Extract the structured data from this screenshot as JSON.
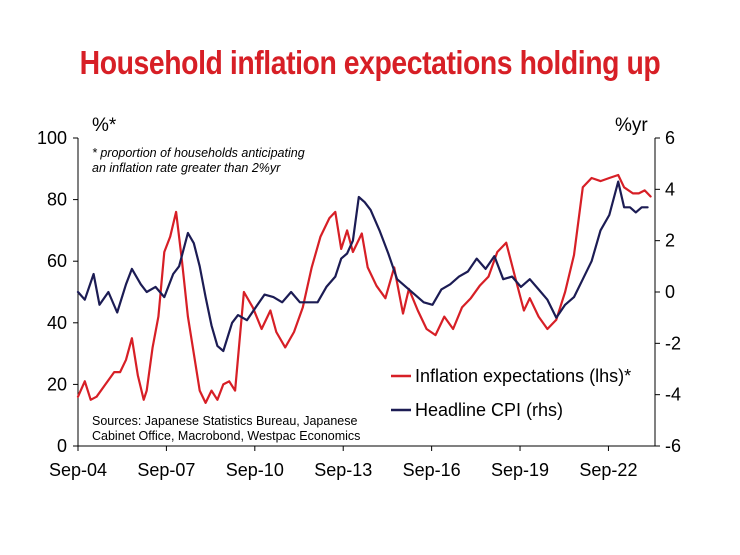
{
  "title": "Household inflation expectations holding up",
  "chart_data": {
    "type": "line",
    "left_unit": "%*",
    "right_unit": "%yr",
    "footnote_lines": [
      "* proportion of households anticipating",
      "an inflation rate greater than 2%yr"
    ],
    "source_lines": [
      "Sources: Japanese Statistics Bureau, Japanese",
      "Cabinet Office, Macrobond, Westpac Economics"
    ],
    "x_ticks": [
      "Sep-04",
      "Sep-07",
      "Sep-10",
      "Sep-13",
      "Sep-16",
      "Sep-19",
      "Sep-22"
    ],
    "x_range": [
      2004.67,
      2024.25
    ],
    "y_left": {
      "ticks": [
        "0",
        "20",
        "40",
        "60",
        "80",
        "100"
      ],
      "range": [
        0,
        100
      ]
    },
    "y_right": {
      "ticks": [
        "-6",
        "-4",
        "-2",
        "0",
        "2",
        "4",
        "6"
      ],
      "range": [
        -6,
        6
      ]
    },
    "grid": false,
    "legend_position": "bottom-right",
    "series": [
      {
        "name": "Inflation expectations (lhs)*",
        "axis": "left",
        "color": "#d71f26",
        "x": [
          2004.67,
          2004.9,
          2005.1,
          2005.3,
          2005.6,
          2005.9,
          2006.1,
          2006.3,
          2006.5,
          2006.7,
          2006.9,
          2007.0,
          2007.2,
          2007.4,
          2007.6,
          2007.8,
          2008.0,
          2008.2,
          2008.4,
          2008.6,
          2008.8,
          2009.0,
          2009.2,
          2009.4,
          2009.6,
          2009.8,
          2010.0,
          2010.3,
          2010.6,
          2010.9,
          2011.2,
          2011.4,
          2011.7,
          2012.0,
          2012.3,
          2012.6,
          2012.9,
          2013.2,
          2013.4,
          2013.6,
          2013.8,
          2014.0,
          2014.3,
          2014.5,
          2014.8,
          2015.1,
          2015.4,
          2015.7,
          2015.9,
          2016.2,
          2016.5,
          2016.8,
          2017.1,
          2017.4,
          2017.7,
          2018.0,
          2018.3,
          2018.6,
          2018.9,
          2019.2,
          2019.5,
          2019.8,
          2020.0,
          2020.3,
          2020.6,
          2020.9,
          2021.2,
          2021.5,
          2021.8,
          2022.1,
          2022.4,
          2022.7,
          2023.0,
          2023.2,
          2023.5,
          2023.7,
          2023.9,
          2024.1
        ],
        "y": [
          16,
          21,
          15,
          16,
          20,
          24,
          24,
          28,
          35,
          23,
          15,
          18,
          32,
          42,
          63,
          68,
          76,
          60,
          42,
          30,
          18,
          14,
          18,
          15,
          20,
          21,
          18,
          50,
          45,
          38,
          44,
          37,
          32,
          37,
          45,
          58,
          68,
          74,
          76,
          64,
          70,
          63,
          69,
          58,
          52,
          48,
          58,
          43,
          51,
          44,
          38,
          36,
          42,
          38,
          45,
          48,
          52,
          55,
          63,
          66,
          55,
          44,
          48,
          42,
          38,
          41,
          50,
          62,
          84,
          87,
          86,
          87,
          88,
          84,
          82,
          82,
          83,
          81
        ]
      },
      {
        "name": "Headline CPI (rhs)",
        "axis": "right",
        "color": "#1c1c54",
        "x": [
          2004.67,
          2004.9,
          2005.2,
          2005.4,
          2005.7,
          2006.0,
          2006.3,
          2006.5,
          2006.8,
          2007.0,
          2007.3,
          2007.6,
          2007.9,
          2008.1,
          2008.4,
          2008.6,
          2008.8,
          2009.0,
          2009.2,
          2009.4,
          2009.6,
          2009.9,
          2010.1,
          2010.4,
          2010.7,
          2011.0,
          2011.3,
          2011.6,
          2011.9,
          2012.2,
          2012.5,
          2012.8,
          2013.1,
          2013.4,
          2013.6,
          2013.8,
          2014.0,
          2014.2,
          2014.4,
          2014.6,
          2014.9,
          2015.2,
          2015.5,
          2015.8,
          2016.1,
          2016.4,
          2016.7,
          2017.0,
          2017.3,
          2017.6,
          2017.9,
          2018.2,
          2018.5,
          2018.8,
          2019.1,
          2019.4,
          2019.7,
          2020.0,
          2020.3,
          2020.6,
          2020.9,
          2021.2,
          2021.5,
          2021.8,
          2022.1,
          2022.4,
          2022.7,
          2023.0,
          2023.2,
          2023.4,
          2023.6,
          2023.8,
          2024.0
        ],
        "y": [
          0,
          -0.3,
          0.7,
          -0.5,
          0,
          -0.8,
          0.3,
          0.9,
          0.3,
          0,
          0.2,
          -0.2,
          0.7,
          1.0,
          2.3,
          1.9,
          1.0,
          -0.2,
          -1.3,
          -2.1,
          -2.3,
          -1.2,
          -0.9,
          -1.1,
          -0.6,
          -0.1,
          -0.2,
          -0.4,
          0,
          -0.4,
          -0.4,
          -0.4,
          0.2,
          0.6,
          1.3,
          1.5,
          2.0,
          3.7,
          3.5,
          3.2,
          2.4,
          1.5,
          0.5,
          0.2,
          -0.1,
          -0.4,
          -0.5,
          0.1,
          0.3,
          0.6,
          0.8,
          1.3,
          0.9,
          1.4,
          0.5,
          0.6,
          0.2,
          0.5,
          0.1,
          -0.3,
          -1.0,
          -0.5,
          -0.2,
          0.5,
          1.2,
          2.4,
          3.0,
          4.3,
          3.3,
          3.3,
          3.1,
          3.3,
          3.3
        ]
      }
    ]
  }
}
